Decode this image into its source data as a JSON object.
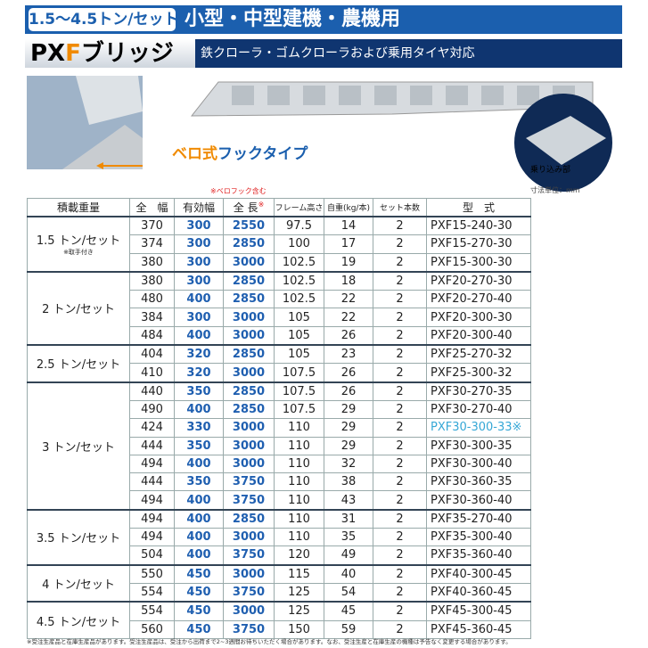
{
  "header": {
    "capacity": "1.5〜4.5トン/セット",
    "usage": "小型・中型建機・農機用",
    "product_prefix": "PX",
    "product_mid": "F",
    "product_suffix": "ブリッジ",
    "subtitle": "鉄クローラ・ゴムクローラおよび乗用タイヤ対応"
  },
  "images": {
    "hook_type_a": "ベロ式",
    "hook_type_b": "フックタイプ",
    "boarding": "乗り込み部"
  },
  "notes": {
    "bero": "※ベロフック含む",
    "unit": "寸法単位：mm",
    "footer": "※受注生産品と在庫生産品があります。受注生産品は、受注から出荷まで2~3週間お待ちいただく場合があります。なお、受注生産と在庫生産の機種は予告なく変更する場合があります。"
  },
  "table": {
    "columns": [
      "積載重量",
      "全　幅",
      "有効幅",
      "全 長",
      "フレーム高さ",
      "自重(kg/本)",
      "セット本数",
      "型　式"
    ],
    "length_mark": "※",
    "groups": [
      {
        "load": "1.5 トン/セット",
        "note": "※取手付き",
        "rows": [
          [
            "370",
            "300",
            "2550",
            "97.5",
            "14",
            "2",
            "PXF15-240-30"
          ],
          [
            "374",
            "300",
            "2850",
            "100",
            "17",
            "2",
            "PXF15-270-30"
          ],
          [
            "380",
            "300",
            "3000",
            "102.5",
            "19",
            "2",
            "PXF15-300-30"
          ]
        ]
      },
      {
        "load": "2 トン/セット",
        "rows": [
          [
            "380",
            "300",
            "2850",
            "102.5",
            "18",
            "2",
            "PXF20-270-30"
          ],
          [
            "480",
            "400",
            "2850",
            "102.5",
            "22",
            "2",
            "PXF20-270-40"
          ],
          [
            "384",
            "300",
            "3000",
            "105",
            "22",
            "2",
            "PXF20-300-30"
          ],
          [
            "484",
            "400",
            "3000",
            "105",
            "26",
            "2",
            "PXF20-300-40"
          ]
        ]
      },
      {
        "load": "2.5 トン/セット",
        "rows": [
          [
            "404",
            "320",
            "2850",
            "105",
            "23",
            "2",
            "PXF25-270-32"
          ],
          [
            "410",
            "320",
            "3000",
            "107.5",
            "26",
            "2",
            "PXF25-300-32"
          ]
        ]
      },
      {
        "load": "3 トン/セット",
        "rows": [
          [
            "440",
            "350",
            "2850",
            "107.5",
            "26",
            "2",
            "PXF30-270-35"
          ],
          [
            "490",
            "400",
            "2850",
            "107.5",
            "29",
            "2",
            "PXF30-270-40"
          ],
          [
            "424",
            "330",
            "3000",
            "110",
            "29",
            "2",
            "PXF30-300-33※"
          ],
          [
            "444",
            "350",
            "3000",
            "110",
            "29",
            "2",
            "PXF30-300-35"
          ],
          [
            "494",
            "400",
            "3000",
            "110",
            "32",
            "2",
            "PXF30-300-40"
          ],
          [
            "444",
            "350",
            "3750",
            "110",
            "38",
            "2",
            "PXF30-360-35"
          ],
          [
            "494",
            "400",
            "3750",
            "110",
            "43",
            "2",
            "PXF30-360-40"
          ]
        ]
      },
      {
        "load": "3.5 トン/セット",
        "rows": [
          [
            "494",
            "400",
            "2850",
            "110",
            "31",
            "2",
            "PXF35-270-40"
          ],
          [
            "494",
            "400",
            "3000",
            "110",
            "35",
            "2",
            "PXF35-300-40"
          ],
          [
            "504",
            "400",
            "3750",
            "120",
            "49",
            "2",
            "PXF35-360-40"
          ]
        ]
      },
      {
        "load": "4 トン/セット",
        "rows": [
          [
            "550",
            "450",
            "3000",
            "115",
            "40",
            "2",
            "PXF40-300-45"
          ],
          [
            "554",
            "450",
            "3750",
            "125",
            "54",
            "2",
            "PXF40-360-45"
          ]
        ]
      },
      {
        "load": "4.5 トン/セット",
        "rows": [
          [
            "554",
            "450",
            "3000",
            "125",
            "45",
            "2",
            "PXF45-300-45"
          ],
          [
            "560",
            "450",
            "3750",
            "150",
            "59",
            "2",
            "PXF45-360-45"
          ]
        ]
      }
    ]
  }
}
